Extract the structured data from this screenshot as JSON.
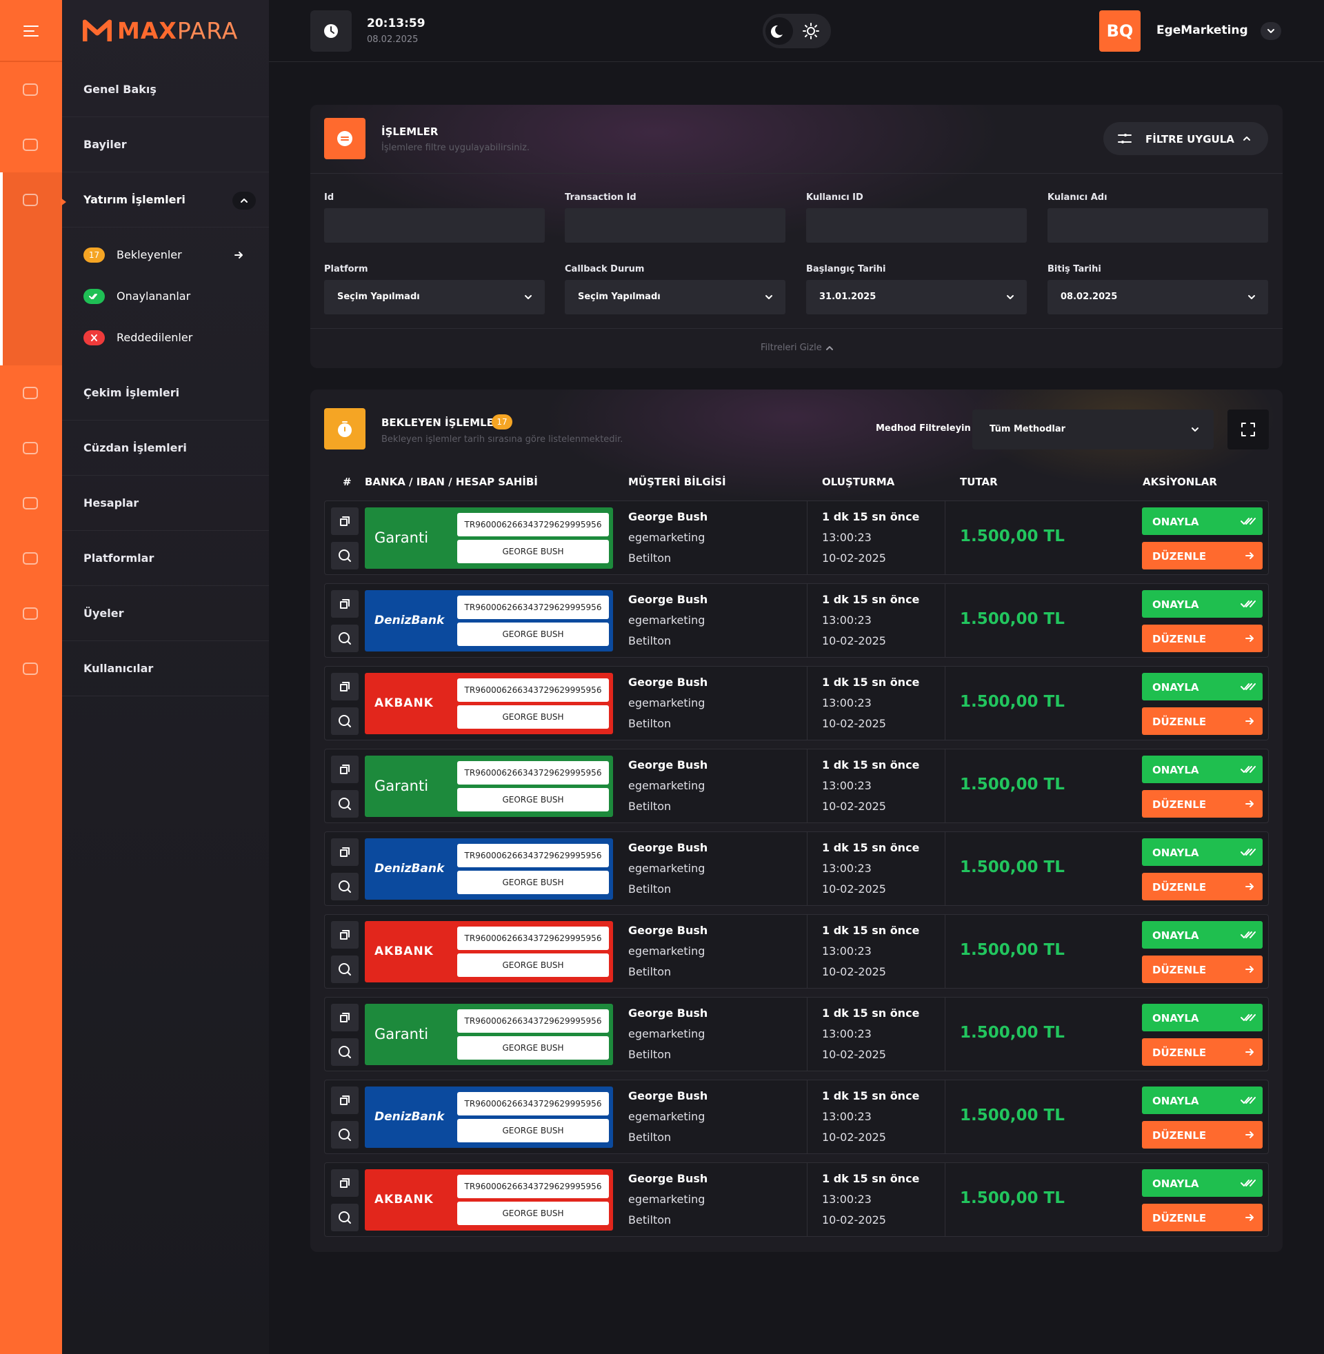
{
  "header": {
    "time": "20:13:59",
    "date": "08.02.2025",
    "initials": "BQ",
    "user": "EgeMarketing"
  },
  "logo": {
    "bold": "MAX",
    "light": "PARA"
  },
  "menu": [
    {
      "label": "Genel Bakış"
    },
    {
      "label": "Bayiler"
    },
    {
      "label": "Yatırım İşlemleri"
    },
    {
      "label": "Çekim İşlemleri"
    },
    {
      "label": "Cüzdan İşlemleri"
    },
    {
      "label": "Hesaplar"
    },
    {
      "label": "Platformlar"
    },
    {
      "label": "Üyeler"
    },
    {
      "label": "Kullanıcılar"
    }
  ],
  "submenu": [
    {
      "label": "Bekleyenler",
      "badge": 17
    },
    {
      "label": "Onaylananlar"
    },
    {
      "label": "Reddedilenler"
    }
  ],
  "filters": {
    "title": "İŞLEMLER",
    "subtitle": "İşlemlere filtre uygulayabilirsiniz.",
    "button": "FİLTRE UYGULA",
    "fields": [
      {
        "label": "Id"
      },
      {
        "label": "Transaction Id"
      },
      {
        "label": "Kullanıcı ID"
      },
      {
        "label": "Kulanıcı Adı"
      },
      {
        "label": "Platform",
        "value": "Seçim Yapılmadı"
      },
      {
        "label": "Callback Durum",
        "value": "Seçim Yapılmadı"
      },
      {
        "label": "Başlangıç Tarihi",
        "value": "31.01.2025"
      },
      {
        "label": "Bitiş Tarihi",
        "value": "08.02.2025"
      }
    ],
    "toggle": "Filtreleri Gizle"
  },
  "pending": {
    "title": "BEKLEYEN İŞLEMLER",
    "count": 17,
    "subtitle": "Bekleyen işlemler tarih sırasına göre listelenmektedir.",
    "method_label": "Medhod Filtreleyin",
    "method_value": "Tüm Methodlar",
    "columns": [
      "#",
      "BANKA / IBAN / HESAP SAHİBİ",
      "MÜŞTERİ BİLGİSİ",
      "OLUŞTURMA",
      "TUTAR",
      "AKSİYONLAR"
    ],
    "rows": [
      {
        "bank": "Garanti",
        "bank_color": "#1d8a3c",
        "iban": "TR960006266343729629995956",
        "holder": "GEORGE BUSH",
        "name": "George Bush",
        "user": "egemarketing",
        "platform": "Betilton",
        "ago": "1 dk 15 sn önce",
        "time": "13:00:23",
        "date": "10-02-2025",
        "amount": "1.500,00 TL",
        "approve": "ONAYLA",
        "edit": "DÜZENLE"
      },
      {
        "bank": "DenizBank",
        "bank_color": "#0b4a9e",
        "iban": "TR960006266343729629995956",
        "holder": "GEORGE BUSH",
        "name": "George Bush",
        "user": "egemarketing",
        "platform": "Betilton",
        "ago": "1 dk 15 sn önce",
        "time": "13:00:23",
        "date": "10-02-2025",
        "amount": "1.500,00 TL",
        "approve": "ONAYLA",
        "edit": "DÜZENLE"
      },
      {
        "bank": "AKBANK",
        "bank_color": "#e2261c",
        "iban": "TR960006266343729629995956",
        "holder": "GEORGE BUSH",
        "name": "George Bush",
        "user": "egemarketing",
        "platform": "Betilton",
        "ago": "1 dk 15 sn önce",
        "time": "13:00:23",
        "date": "10-02-2025",
        "amount": "1.500,00 TL",
        "approve": "ONAYLA",
        "edit": "DÜZENLE"
      },
      {
        "bank": "Garanti",
        "bank_color": "#1d8a3c",
        "iban": "TR960006266343729629995956",
        "holder": "GEORGE BUSH",
        "name": "George Bush",
        "user": "egemarketing",
        "platform": "Betilton",
        "ago": "1 dk 15 sn önce",
        "time": "13:00:23",
        "date": "10-02-2025",
        "amount": "1.500,00 TL",
        "approve": "ONAYLA",
        "edit": "DÜZENLE"
      },
      {
        "bank": "DenizBank",
        "bank_color": "#0b4a9e",
        "iban": "TR960006266343729629995956",
        "holder": "GEORGE BUSH",
        "name": "George Bush",
        "user": "egemarketing",
        "platform": "Betilton",
        "ago": "1 dk 15 sn önce",
        "time": "13:00:23",
        "date": "10-02-2025",
        "amount": "1.500,00 TL",
        "approve": "ONAYLA",
        "edit": "DÜZENLE"
      },
      {
        "bank": "AKBANK",
        "bank_color": "#e2261c",
        "iban": "TR960006266343729629995956",
        "holder": "GEORGE BUSH",
        "name": "George Bush",
        "user": "egemarketing",
        "platform": "Betilton",
        "ago": "1 dk 15 sn önce",
        "time": "13:00:23",
        "date": "10-02-2025",
        "amount": "1.500,00 TL",
        "approve": "ONAYLA",
        "edit": "DÜZENLE"
      },
      {
        "bank": "Garanti",
        "bank_color": "#1d8a3c",
        "iban": "TR960006266343729629995956",
        "holder": "GEORGE BUSH",
        "name": "George Bush",
        "user": "egemarketing",
        "platform": "Betilton",
        "ago": "1 dk 15 sn önce",
        "time": "13:00:23",
        "date": "10-02-2025",
        "amount": "1.500,00 TL",
        "approve": "ONAYLA",
        "edit": "DÜZENLE"
      },
      {
        "bank": "DenizBank",
        "bank_color": "#0b4a9e",
        "iban": "TR960006266343729629995956",
        "holder": "GEORGE BUSH",
        "name": "George Bush",
        "user": "egemarketing",
        "platform": "Betilton",
        "ago": "1 dk 15 sn önce",
        "time": "13:00:23",
        "date": "10-02-2025",
        "amount": "1.500,00 TL",
        "approve": "ONAYLA",
        "edit": "DÜZENLE"
      },
      {
        "bank": "AKBANK",
        "bank_color": "#e2261c",
        "iban": "TR960006266343729629995956",
        "holder": "GEORGE BUSH",
        "name": "George Bush",
        "user": "egemarketing",
        "platform": "Betilton",
        "ago": "1 dk 15 sn önce",
        "time": "13:00:23",
        "date": "10-02-2025",
        "amount": "1.500,00 TL",
        "approve": "ONAYLA",
        "edit": "DÜZENLE"
      }
    ]
  }
}
